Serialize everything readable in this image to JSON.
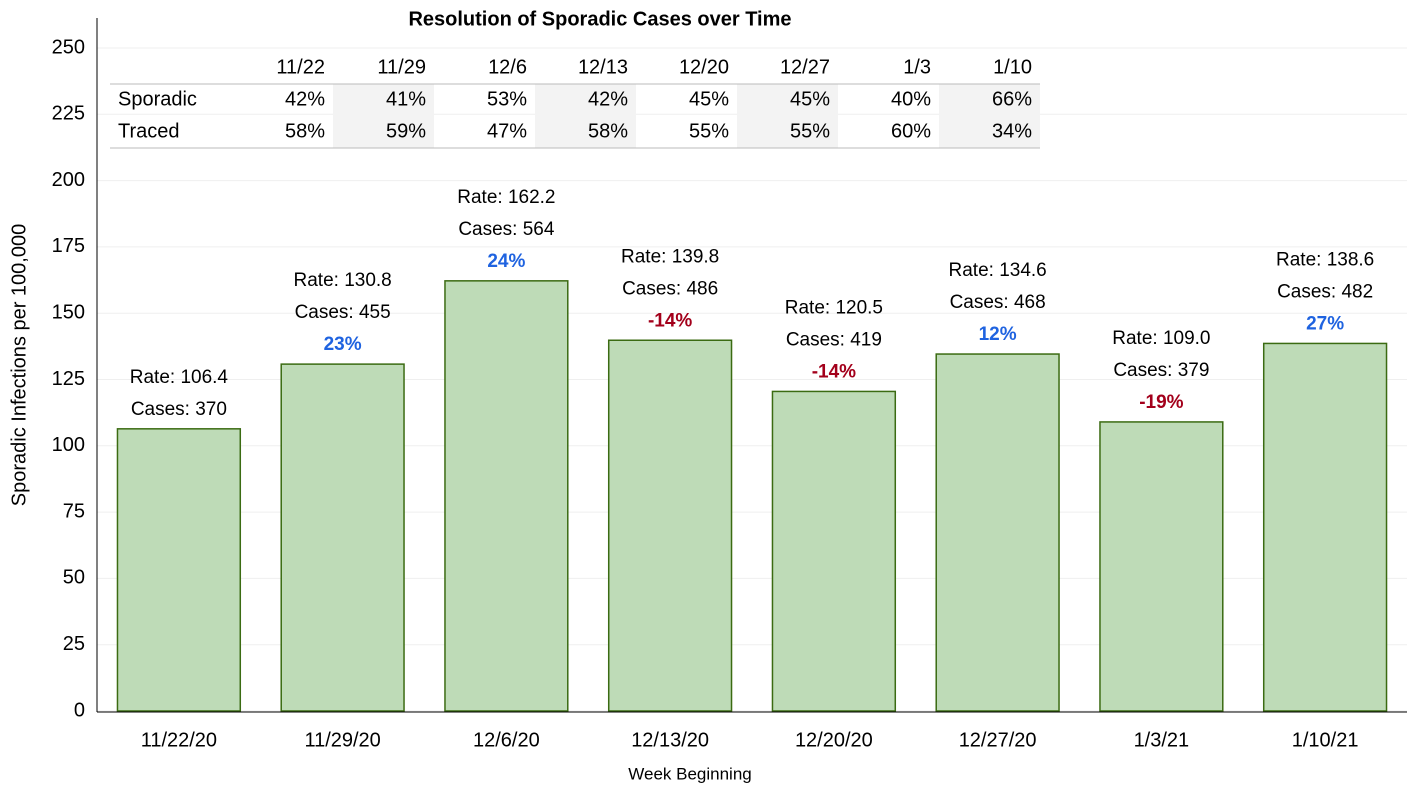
{
  "chart_data": {
    "type": "bar",
    "title": "Resolution of Sporadic Cases over Time",
    "xlabel": "Week Beginning",
    "ylabel": "Sporadic Infections per 100,000",
    "categories": [
      "11/22/20",
      "11/29/20",
      "12/6/20",
      "12/13/20",
      "12/20/20",
      "12/27/20",
      "1/3/21",
      "1/10/21"
    ],
    "values": [
      106.4,
      130.8,
      162.2,
      139.8,
      120.5,
      134.6,
      109.0,
      138.6
    ],
    "value_labels": [
      "Rate: 106.4",
      "Rate: 130.8",
      "Rate: 162.2",
      "Rate: 139.8",
      "Rate: 120.5",
      "Rate: 134.6",
      "Rate: 109.0",
      "Rate: 138.6"
    ],
    "color": "#bedbb7",
    "edge_color": "#3b6b12",
    "cases": {
      "values": [
        370,
        455,
        564,
        486,
        419,
        468,
        379,
        482
      ],
      "labels": [
        "Cases: 370",
        "Cases: 455",
        "Cases: 564",
        "Cases: 486",
        "Cases: 419",
        "Cases: 468",
        "Cases: 379",
        "Cases: 482"
      ]
    },
    "change": {
      "values": [
        null,
        23,
        24,
        -14,
        -14,
        12,
        -19,
        27
      ],
      "labels": [
        null,
        "23%",
        "24%",
        "-14%",
        "-14%",
        "12%",
        "-19%",
        "27%"
      ],
      "positive_color": "#1f63e0",
      "negative_color": "#a3001b"
    },
    "ylim": [
      0,
      250
    ],
    "yticks": [
      0,
      25,
      50,
      75,
      100,
      125,
      150,
      175,
      200,
      225,
      250
    ],
    "grid": true,
    "table": {
      "columns": [
        "11/22",
        "11/29",
        "12/6",
        "12/13",
        "12/20",
        "12/27",
        "1/3",
        "1/10"
      ],
      "rows": [
        {
          "label": "Sporadic",
          "cells": [
            "42%",
            "41%",
            "53%",
            "42%",
            "45%",
            "45%",
            "40%",
            "66%"
          ]
        },
        {
          "label": "Traced",
          "cells": [
            "58%",
            "59%",
            "47%",
            "58%",
            "55%",
            "55%",
            "60%",
            "34%"
          ]
        }
      ]
    }
  }
}
